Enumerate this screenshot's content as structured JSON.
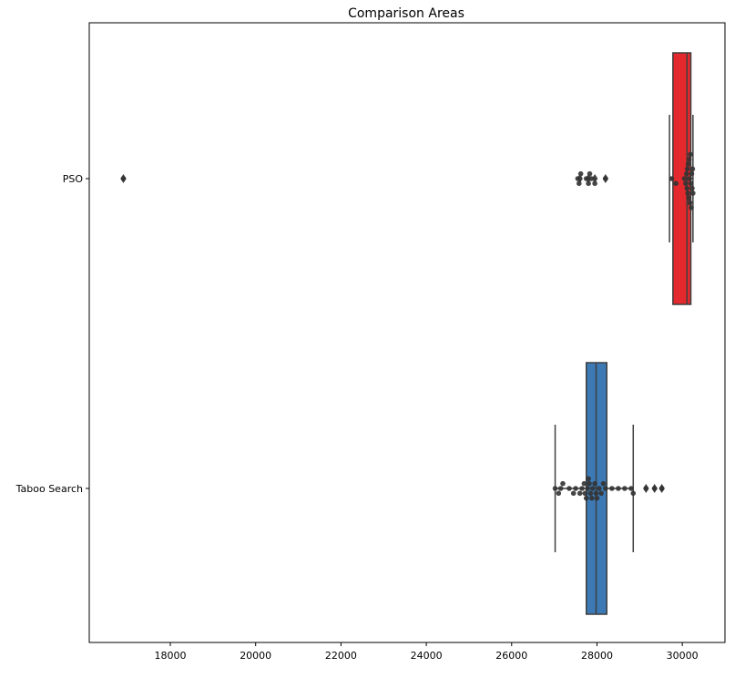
{
  "chart_data": {
    "type": "box",
    "title": "Comparison Areas",
    "orientation": "horizontal",
    "categories": [
      "PSO",
      "Taboo Search"
    ],
    "xlim": [
      16100,
      31000
    ],
    "xticks": [
      18000,
      20000,
      22000,
      24000,
      26000,
      28000,
      30000
    ],
    "grid": false,
    "series": [
      {
        "category": "PSO",
        "color": "#e3292d",
        "box": {
          "q1": 29780,
          "median": 30110,
          "q3": 30200,
          "whisker_low": 29700,
          "whisker_high": 30250
        },
        "outliers": [
          16900,
          27600,
          27800,
          27950,
          28200
        ],
        "swarm": [
          16900,
          27550,
          27580,
          27620,
          27750,
          27800,
          27830,
          27870,
          27950,
          28200,
          29750,
          29850,
          30050,
          30080,
          30100,
          30110,
          30120,
          30130,
          30140,
          30150,
          30160,
          30170,
          30180,
          30190,
          30200,
          30210,
          30220,
          30230,
          30240,
          30250
        ]
      },
      {
        "category": "Taboo Search",
        "color": "#3d7ab5",
        "box": {
          "q1": 27750,
          "median": 27980,
          "q3": 28230,
          "whisker_low": 27020,
          "whisker_high": 28850
        },
        "outliers": [
          29150,
          29350,
          29520
        ],
        "swarm": [
          27020,
          27100,
          27150,
          27200,
          27350,
          27450,
          27500,
          27600,
          27650,
          27700,
          27720,
          27750,
          27780,
          27800,
          27820,
          27850,
          27880,
          27900,
          27950,
          27980,
          28000,
          28050,
          28100,
          28150,
          28200,
          28350,
          28500,
          28650,
          28800,
          28850,
          29150,
          29350,
          29520
        ]
      }
    ]
  }
}
